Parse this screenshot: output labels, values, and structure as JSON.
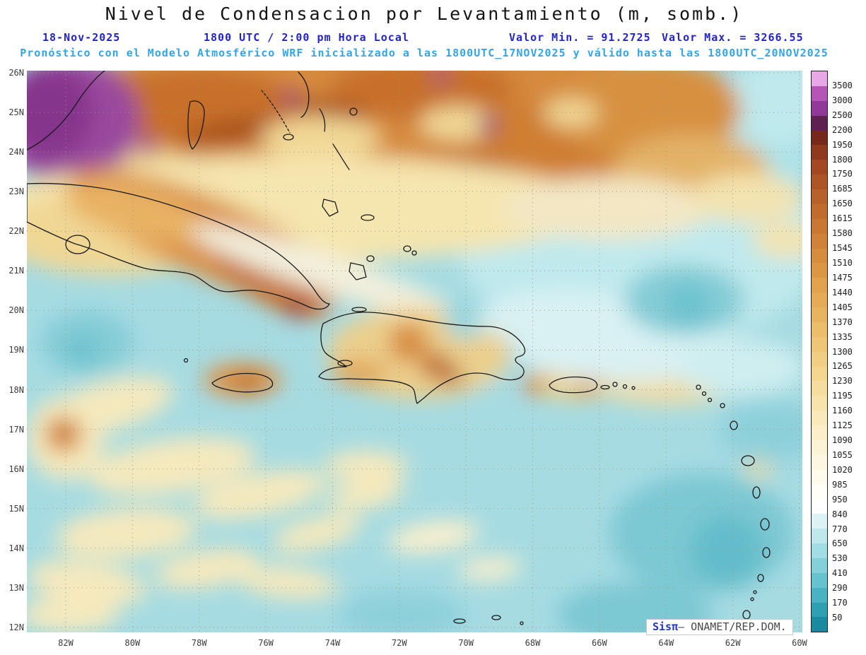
{
  "header": {
    "title": "Nivel de Condensacion por Levantamiento (m, somb.)",
    "date_label": "18-Nov-2025",
    "time_label": "1800 UTC / 2:00 pm Hora Local",
    "min_label": "Valor Min. = 91.2725",
    "max_label": "Valor Max. = 3266.55",
    "forecast_label": "Pronóstico con el Modelo Atmosférico WRF inicializado a las 1800UTC_17NOV2025 y válido hasta las  1800UTC_20NOV2025"
  },
  "colors": {
    "header_blue": "#2323c8",
    "header_cyan": "#35a4e4",
    "sea_teal": "#a6dbe2",
    "coastline": "#1a1a1a"
  },
  "map": {
    "lat_labels": [
      "26N",
      "25N",
      "24N",
      "23N",
      "22N",
      "21N",
      "20N",
      "19N",
      "18N",
      "17N",
      "16N",
      "15N",
      "14N",
      "13N",
      "12N"
    ],
    "lon_labels": [
      "82W",
      "80W",
      "78W",
      "76W",
      "74W",
      "72W",
      "70W",
      "68W",
      "66W",
      "64W",
      "62W",
      "60W"
    ]
  },
  "colorbar": {
    "labels": [
      "3500",
      "3000",
      "2500",
      "2200",
      "1950",
      "1800",
      "1750",
      "1685",
      "1650",
      "1615",
      "1580",
      "1545",
      "1510",
      "1475",
      "1440",
      "1405",
      "1370",
      "1335",
      "1300",
      "1265",
      "1230",
      "1195",
      "1160",
      "1125",
      "1090",
      "1055",
      "1020",
      "985",
      "950",
      "840",
      "770",
      "650",
      "530",
      "410",
      "290",
      "170",
      "50"
    ],
    "colors": [
      "#e8a8e8",
      "#b655b6",
      "#93389b",
      "#5f2052",
      "#76281a",
      "#8f3a1e",
      "#a34822",
      "#ae5526",
      "#b8612a",
      "#c16c2e",
      "#c97733",
      "#d08238",
      "#d68d3e",
      "#dc9745",
      "#e1a14d",
      "#e5ab56",
      "#e9b460",
      "#ecbd6b",
      "#efc677",
      "#f2ce84",
      "#f4d691",
      "#f6dd9f",
      "#f8e3ad",
      "#fae9bb",
      "#fbeec9",
      "#fcf3d6",
      "#fdf7e2",
      "#fefbed",
      "#fffef7",
      "#ffffff",
      "#ddf2f4",
      "#bfe8ec",
      "#a1dde4",
      "#83d0da",
      "#66c2cf",
      "#4ab3c3",
      "#2f9fb4",
      "#1a8aa0"
    ]
  },
  "branding": {
    "system_label": "Sisπ",
    "org_label": "– ONAMET/REP.DOM."
  },
  "chart_data": {
    "type": "heatmap",
    "title": "Nivel de Condensacion por Levantamiento (m, somb.)",
    "units": "m",
    "value_min": 91.2725,
    "value_max": 3266.55,
    "contour_levels": [
      50,
      170,
      290,
      410,
      530,
      650,
      770,
      840,
      950,
      985,
      1020,
      1055,
      1090,
      1125,
      1160,
      1195,
      1230,
      1265,
      1300,
      1335,
      1370,
      1405,
      1440,
      1475,
      1510,
      1545,
      1580,
      1615,
      1650,
      1685,
      1750,
      1800,
      1950,
      2200,
      2500,
      3000,
      3500
    ],
    "x_axis": {
      "labels": [
        "82W",
        "80W",
        "78W",
        "76W",
        "74W",
        "72W",
        "70W",
        "68W",
        "66W",
        "64W",
        "62W",
        "60W"
      ]
    },
    "y_axis": {
      "labels": [
        "26N",
        "25N",
        "24N",
        "23N",
        "22N",
        "21N",
        "20N",
        "19N",
        "18N",
        "17N",
        "16N",
        "15N",
        "14N",
        "13N",
        "12N"
      ]
    },
    "legend_position": "right",
    "grid": "dotted"
  }
}
